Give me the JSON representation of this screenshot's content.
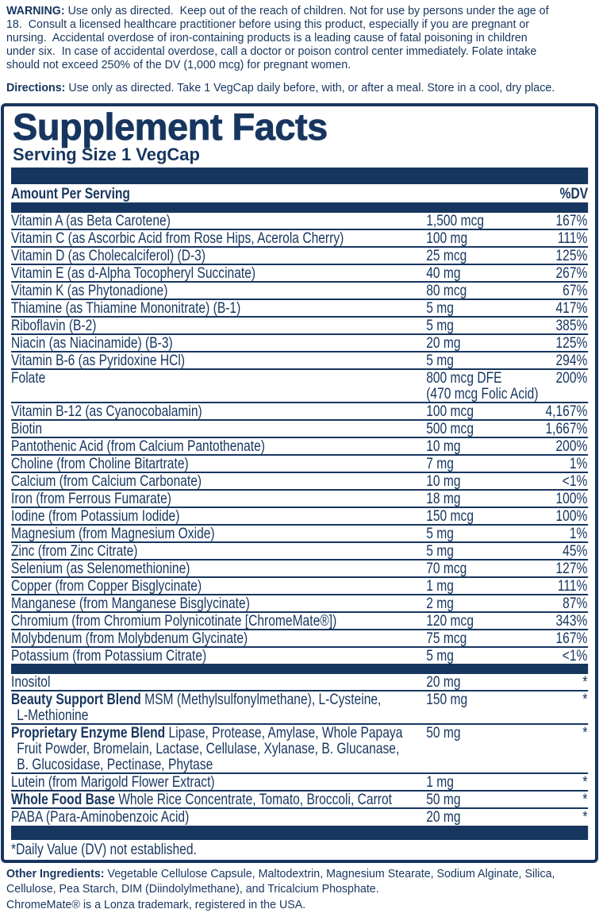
{
  "colors": {
    "navy": "#17365f"
  },
  "warning": {
    "label": "WARNING:",
    "text": " Use only as directed.  Keep out of the reach of children. Not for use by persons under the age of\n18.  Consult a licensed healthcare practitioner before using this product, especially if you are pregnant or\nnursing.  Accidental overdose of iron-containing products is a leading cause of fatal poisoning in children\nunder six.  In case of accidental overdose, call a doctor or poison control center immediately. Folate intake\nshould not exceed 250% of the DV (1,000 mcg) for pregnant women."
  },
  "directions": {
    "label": "Directions:",
    "text": " Use only as directed. Take 1 VegCap daily before, with, or after a meal. Store in a cool, dry place."
  },
  "panel": {
    "title": "Supplement Facts",
    "serving_size": "Serving Size 1 VegCap",
    "header": {
      "amount_label": "Amount Per Serving",
      "dv_label": "%DV"
    },
    "rows": [
      {
        "name": "Vitamin A (as Beta Carotene)",
        "amount": "1,500 mcg",
        "dv": "167%"
      },
      {
        "name": "Vitamin C (as Ascorbic Acid from Rose Hips, Acerola Cherry)",
        "amount": "100 mg",
        "dv": "111%"
      },
      {
        "name": "Vitamin D (as Cholecalciferol) (D-3)",
        "amount": "25 mcg",
        "dv": "125%"
      },
      {
        "name": "Vitamin E (as d-Alpha Tocopheryl Succinate)",
        "amount": "40 mg",
        "dv": "267%"
      },
      {
        "name": "Vitamin K (as Phytonadione)",
        "amount": "80 mcg",
        "dv": "67%"
      },
      {
        "name": "Thiamine (as Thiamine Mononitrate) (B-1)",
        "amount": "5 mg",
        "dv": "417%"
      },
      {
        "name": "Riboflavin (B-2)",
        "amount": "5 mg",
        "dv": "385%"
      },
      {
        "name": "Niacin (as Niacinamide) (B-3)",
        "amount": "20 mg",
        "dv": "125%"
      },
      {
        "name": "Vitamin B-6 (as Pyridoxine HCl)",
        "amount": "5 mg",
        "dv": "294%"
      },
      {
        "name": "Folate",
        "amount": "800 mcg DFE",
        "amount2": "(470 mcg Folic Acid)",
        "dv": "200%"
      },
      {
        "name": "Vitamin B-12 (as Cyanocobalamin)",
        "amount": "100 mcg",
        "dv": "4,167%"
      },
      {
        "name": "Biotin",
        "amount": "500 mcg",
        "dv": "1,667%"
      },
      {
        "name": "Pantothenic Acid (from Calcium Pantothenate)",
        "amount": "10 mg",
        "dv": "200%"
      },
      {
        "name": "Choline (from Choline Bitartrate)",
        "amount": "7 mg",
        "dv": "1%"
      },
      {
        "name": "Calcium (from Calcium Carbonate)",
        "amount": "10 mg",
        "dv": "<1%"
      },
      {
        "name": "Iron (from Ferrous Fumarate)",
        "amount": "18 mg",
        "dv": "100%"
      },
      {
        "name": "Iodine (from Potassium Iodide)",
        "amount": "150 mcg",
        "dv": "100%"
      },
      {
        "name": "Magnesium (from Magnesium Oxide)",
        "amount": "5 mg",
        "dv": "1%"
      },
      {
        "name": "Zinc (from Zinc Citrate)",
        "amount": "5 mg",
        "dv": "45%"
      },
      {
        "name": "Selenium (as Selenomethionine)",
        "amount": "70 mcg",
        "dv": "127%"
      },
      {
        "name": "Copper (from Copper Bisglycinate)",
        "amount": "1 mg",
        "dv": "111%"
      },
      {
        "name": "Manganese (from Manganese Bisglycinate)",
        "amount": "2 mg",
        "dv": "87%"
      },
      {
        "name": "Chromium (from Chromium Polynicotinate [ChromeMate®])",
        "amount": "120 mcg",
        "dv": "343%"
      },
      {
        "name": "Molybdenum (from Molybdenum Glycinate)",
        "amount": "75 mcg",
        "dv": "167%"
      },
      {
        "name": "Potassium (from Potassium Citrate)",
        "amount": "5 mg",
        "dv": "<1%"
      }
    ],
    "blend_rows": [
      {
        "name": "Inositol",
        "amount": "20 mg",
        "dv": "*"
      },
      {
        "bold": "Beauty Support Blend",
        "name": " MSM (Methylsulfonylmethane), L-Cysteine,\nL-Methionine",
        "amount": "150 mg",
        "dv": "*"
      },
      {
        "bold": "Proprietary Enzyme Blend",
        "name": " Lipase, Protease, Amylase, Whole Papaya\nFruit Powder, Bromelain, Lactase, Cellulase, Xylanase, B. Glucanase,\nB. Glucosidase, Pectinase, Phytase",
        "amount": "50 mg",
        "dv": "*"
      },
      {
        "name": "Lutein (from Marigold Flower Extract)",
        "amount": "1 mg",
        "dv": "*"
      },
      {
        "bold": "Whole Food Base",
        "name": " Whole Rice Concentrate, Tomato, Broccoli, Carrot",
        "amount": "50 mg",
        "dv": "*"
      },
      {
        "name": "PABA (Para-Aminobenzoic Acid)",
        "amount": "20 mg",
        "dv": "*"
      }
    ],
    "footnote": "*Daily Value (DV) not established."
  },
  "other_ingredients": {
    "label": "Other Ingredients:",
    "text": " Vegetable Cellulose Capsule, Maltodextrin, Magnesium Stearate, Sodium Alginate, Silica,\nCellulose, Pea Starch, DIM (Diindolylmethane), and Tricalcium Phosphate."
  },
  "trademark": "ChromeMate® is a Lonza trademark, registered in the USA."
}
